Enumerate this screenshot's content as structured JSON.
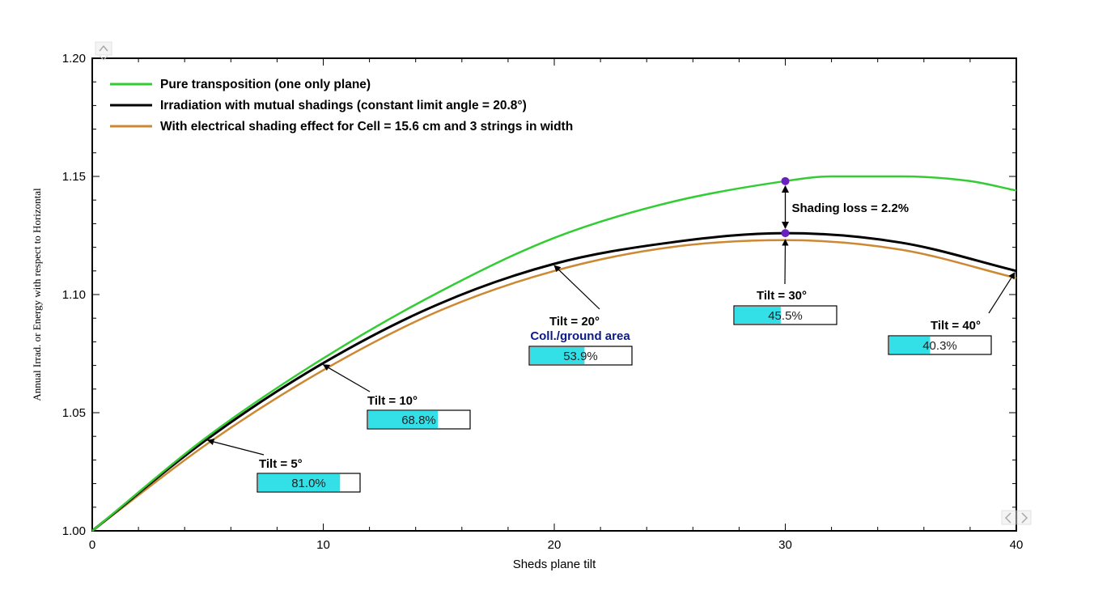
{
  "chart_data": {
    "type": "line",
    "xlabel": "Sheds plane tilt",
    "ylabel": "Annual Irrad. or Energy with respect to Horizontal",
    "xlim": [
      0,
      40
    ],
    "ylim": [
      1.0,
      1.2
    ],
    "x_ticks": [
      "0",
      "10",
      "20",
      "30",
      "40"
    ],
    "y_ticks": [
      "1.00",
      "1.05",
      "1.10",
      "1.15",
      "1.20"
    ],
    "grid": false,
    "legend_position": "top-left",
    "series": [
      {
        "name": "Pure transposition (one only plane)",
        "color": "#33cc33",
        "x": [
          0,
          5,
          10,
          15,
          20,
          25,
          30,
          32,
          35,
          38,
          40
        ],
        "values": [
          1.0,
          1.04,
          1.073,
          1.101,
          1.124,
          1.139,
          1.148,
          1.15,
          1.15,
          1.148,
          1.144
        ]
      },
      {
        "name": "Irradiation with mutual shadings (constant limit angle = 20.8°)",
        "color": "#000000",
        "x": [
          0,
          5,
          10,
          15,
          20,
          25,
          30,
          35,
          40
        ],
        "values": [
          1.0,
          1.039,
          1.071,
          1.096,
          1.113,
          1.122,
          1.126,
          1.122,
          1.11
        ]
      },
      {
        "name": "With electrical shading effect for Cell = 15.6 cm and 3 strings in width",
        "color": "#cc8833",
        "x": [
          0,
          5,
          10,
          15,
          20,
          25,
          30,
          35,
          40
        ],
        "values": [
          1.0,
          1.037,
          1.068,
          1.093,
          1.11,
          1.12,
          1.123,
          1.119,
          1.107
        ]
      }
    ],
    "annotations": {
      "shading_loss": {
        "label": "Shading loss = 2.2%",
        "x": 30,
        "y_top": 1.148,
        "y_bottom": 1.126,
        "marker_color": "#6a1fc0"
      },
      "gcr_title": "Coll./ground area",
      "tilts": [
        {
          "label": "Tilt = 5°",
          "value_label": "81.0%",
          "fraction": 0.81,
          "x": 5,
          "y": 1.039
        },
        {
          "label": "Tilt = 10°",
          "value_label": "68.8%",
          "fraction": 0.688,
          "x": 10,
          "y": 1.071
        },
        {
          "label": "Tilt = 20°",
          "value_label": "53.9%",
          "fraction": 0.539,
          "x": 20,
          "y": 1.113
        },
        {
          "label": "Tilt = 30°",
          "value_label": "45.5%",
          "fraction": 0.455,
          "x": 30,
          "y": 1.126
        },
        {
          "label": "Tilt = 40°",
          "value_label": "40.3%",
          "fraction": 0.403,
          "x": 40,
          "y": 1.11
        }
      ]
    },
    "box_fill_color": "#33e0e8"
  },
  "ui": {
    "scroll_up_icon": "chevron-up-icon",
    "scroll_left_icon": "chevron-left-icon",
    "scroll_right_icon": "chevron-right-icon"
  }
}
